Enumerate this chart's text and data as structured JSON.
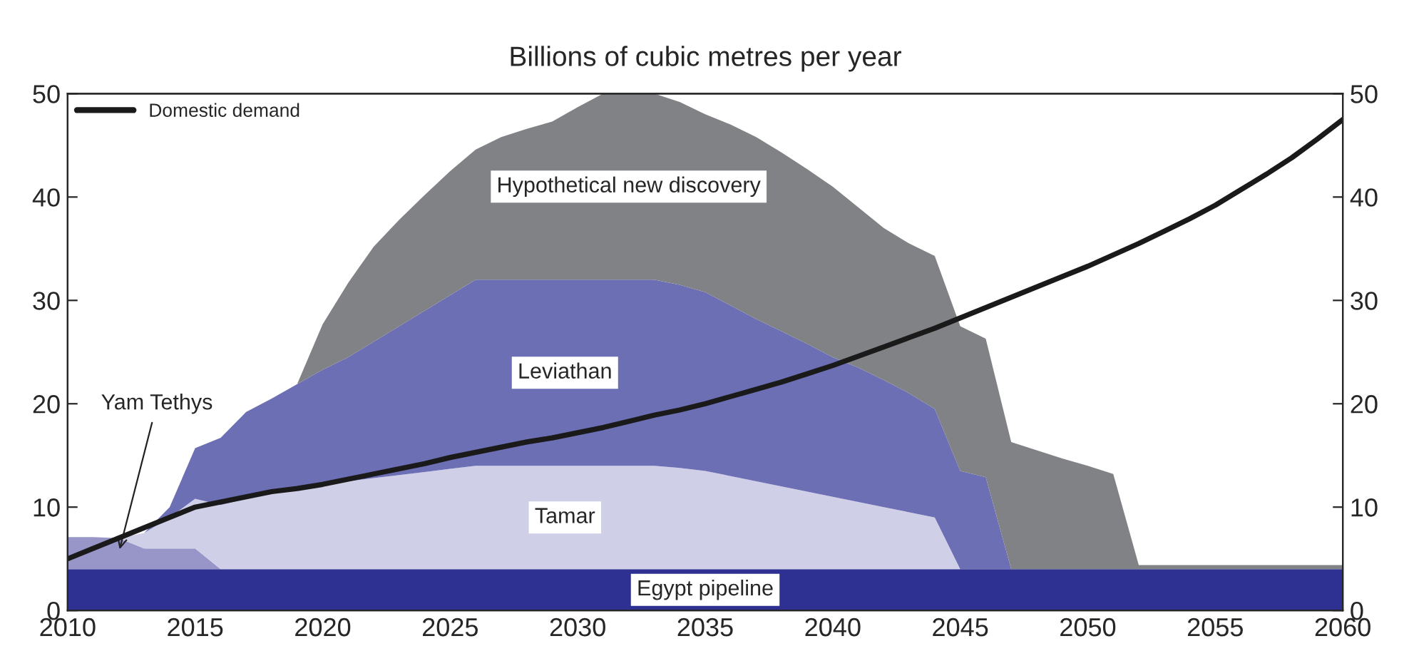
{
  "chart_data": {
    "type": "area",
    "stacked": true,
    "title": "Billions of cubic metres per year",
    "x": [
      2010,
      2011,
      2012,
      2013,
      2014,
      2015,
      2016,
      2017,
      2018,
      2019,
      2020,
      2021,
      2022,
      2023,
      2024,
      2025,
      2026,
      2027,
      2028,
      2029,
      2030,
      2031,
      2032,
      2033,
      2034,
      2035,
      2036,
      2037,
      2038,
      2039,
      2040,
      2041,
      2042,
      2043,
      2044,
      2045,
      2046,
      2047,
      2048,
      2049,
      2050,
      2051,
      2052,
      2053,
      2054,
      2055,
      2056,
      2057,
      2058,
      2059,
      2060
    ],
    "series": [
      {
        "name": "Egypt pipeline",
        "color": "#2e3192",
        "values": [
          4,
          4,
          4,
          4,
          4,
          4,
          4,
          4,
          4,
          4,
          4,
          4,
          4,
          4,
          4,
          4,
          4,
          4,
          4,
          4,
          4,
          4,
          4,
          4,
          4,
          4,
          4,
          4,
          4,
          4,
          4,
          4,
          4,
          4,
          4,
          4,
          4,
          4,
          4,
          4,
          4,
          4,
          4,
          4,
          4,
          4,
          4,
          4,
          4,
          4,
          4
        ]
      },
      {
        "name": "Yam Tethys",
        "color": "#9896c8",
        "values": [
          3.1,
          3.1,
          3.0,
          2.0,
          2.0,
          2.0,
          0,
          0,
          0,
          0,
          0,
          0,
          0,
          0,
          0,
          0,
          0,
          0,
          0,
          0,
          0,
          0,
          0,
          0,
          0,
          0,
          0,
          0,
          0,
          0,
          0,
          0,
          0,
          0,
          0,
          0,
          0,
          0,
          0,
          0,
          0,
          0,
          0,
          0,
          0,
          0,
          0,
          0,
          0,
          0,
          0
        ]
      },
      {
        "name": "Tamar",
        "color": "#d0cfe8",
        "values": [
          0,
          0,
          0,
          1.5,
          3.0,
          4.8,
          6.2,
          6.8,
          7.3,
          7.7,
          8.1,
          8.5,
          8.8,
          9.1,
          9.4,
          9.7,
          10,
          10,
          10,
          10,
          10,
          10,
          10,
          10,
          9.8,
          9.5,
          9.0,
          8.5,
          8.0,
          7.5,
          7.0,
          6.5,
          6.0,
          5.5,
          5.0,
          0,
          0,
          0,
          0,
          0,
          0,
          0,
          0,
          0,
          0,
          0,
          0,
          0,
          0,
          0,
          0
        ]
      },
      {
        "name": "Leviathan",
        "color": "#6d6fb5",
        "values": [
          0,
          0,
          0,
          0,
          1.0,
          4.9,
          6.5,
          8.4,
          9.2,
          10.2,
          11.2,
          12.0,
          13.2,
          14.4,
          15.6,
          16.8,
          18,
          18,
          18,
          18,
          18,
          18,
          18,
          18,
          17.7,
          17.3,
          16.5,
          15.7,
          15.0,
          14.3,
          13.5,
          13.0,
          12.3,
          11.5,
          10.5,
          9.5,
          8.9,
          0,
          0,
          0,
          0,
          0,
          0,
          0,
          0,
          0,
          0,
          0,
          0,
          0,
          0
        ]
      },
      {
        "name": "Hypothetical new discovery",
        "color": "#808285",
        "values": [
          0,
          0,
          0,
          0,
          0,
          0,
          0,
          0,
          0,
          0,
          4.4,
          7.2,
          9.2,
          10.3,
          11.2,
          12.0,
          12.6,
          13.8,
          14.6,
          15.3,
          16.7,
          18,
          18,
          18,
          17.7,
          17.2,
          17.5,
          17.6,
          17.3,
          16.9,
          16.5,
          15.5,
          14.7,
          14.5,
          14.8,
          14.0,
          13.4,
          12.3,
          11.5,
          10.7,
          10.0,
          9.2,
          0.4,
          0.4,
          0.4,
          0.4,
          0.4,
          0.4,
          0.4,
          0.4,
          0.4
        ]
      },
      {
        "name": "Domestic demand",
        "type": "line",
        "color": "#1a1a1a",
        "values": [
          5.0,
          6.0,
          7.0,
          8.0,
          9.0,
          10.0,
          10.5,
          11.0,
          11.5,
          11.8,
          12.2,
          12.7,
          13.2,
          13.7,
          14.2,
          14.8,
          15.3,
          15.8,
          16.3,
          16.7,
          17.2,
          17.7,
          18.3,
          18.9,
          19.4,
          20.0,
          20.7,
          21.4,
          22.1,
          22.9,
          23.7,
          24.6,
          25.5,
          26.4,
          27.3,
          28.3,
          29.3,
          30.3,
          31.3,
          32.3,
          33.3,
          34.4,
          35.5,
          36.7,
          37.9,
          39.2,
          40.7,
          42.2,
          43.8,
          45.6,
          47.5
        ]
      }
    ],
    "xlim": [
      2010,
      2060
    ],
    "xticks": [
      2010,
      2015,
      2020,
      2025,
      2030,
      2035,
      2040,
      2045,
      2050,
      2055,
      2060
    ],
    "ylim": [
      0,
      50
    ],
    "yticks": [
      0,
      10,
      20,
      30,
      40,
      50
    ],
    "y2lim": [
      0,
      50
    ],
    "y2ticks": [
      0,
      10,
      20,
      30,
      40,
      50
    ],
    "legend": "top left",
    "grid": false
  }
}
